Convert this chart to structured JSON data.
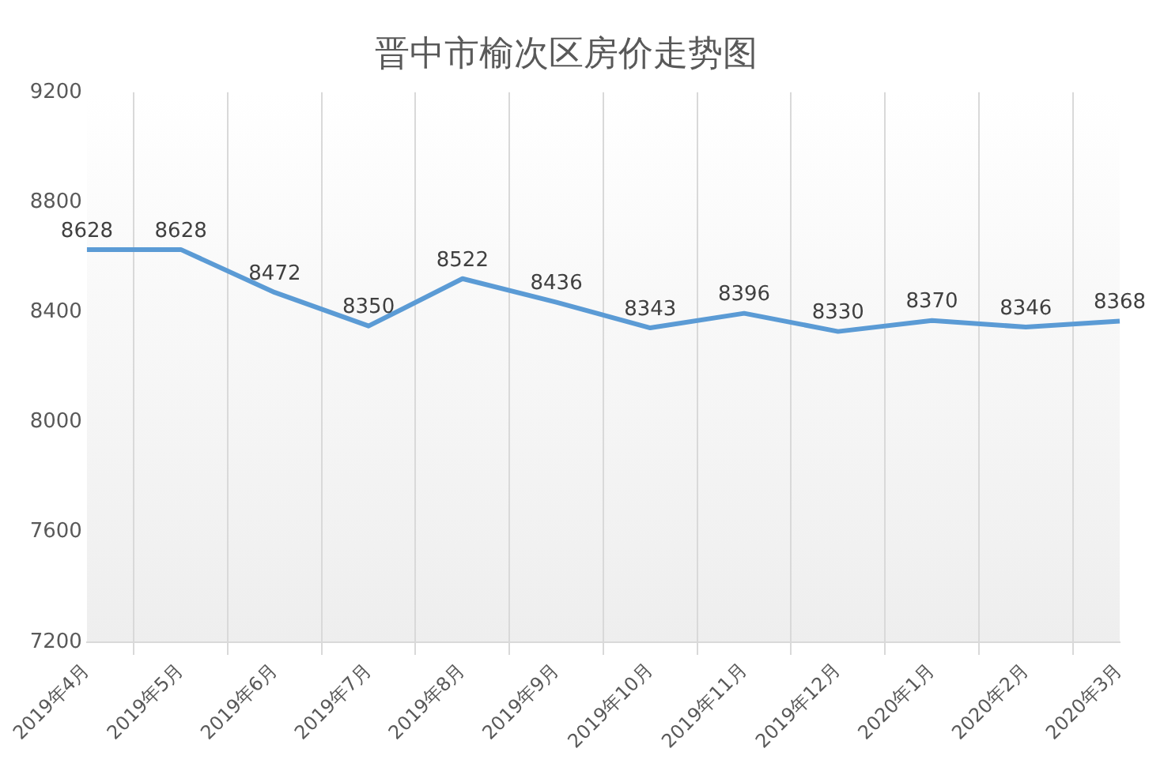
{
  "chart_data": {
    "type": "line",
    "title": "晋中市榆次区房价走势图",
    "categories": [
      "2019年4月",
      "2019年5月",
      "2019年6月",
      "2019年7月",
      "2019年8月",
      "2019年9月",
      "2019年10月",
      "2019年11月",
      "2019年12月",
      "2020年1月",
      "2020年2月",
      "2020年3月"
    ],
    "series": [
      {
        "color": "#5b9bd5",
        "values": [
          8628,
          8628,
          8472,
          8350,
          8522,
          8436,
          8343,
          8396,
          8330,
          8370,
          8346,
          8368
        ]
      }
    ],
    "ylim": [
      7200,
      9200
    ],
    "yticks": [
      7200,
      7600,
      8000,
      8400,
      8800,
      9200
    ],
    "grid": "x",
    "data_labels": true,
    "marker": "none",
    "line_style": "solid",
    "legend": false
  }
}
